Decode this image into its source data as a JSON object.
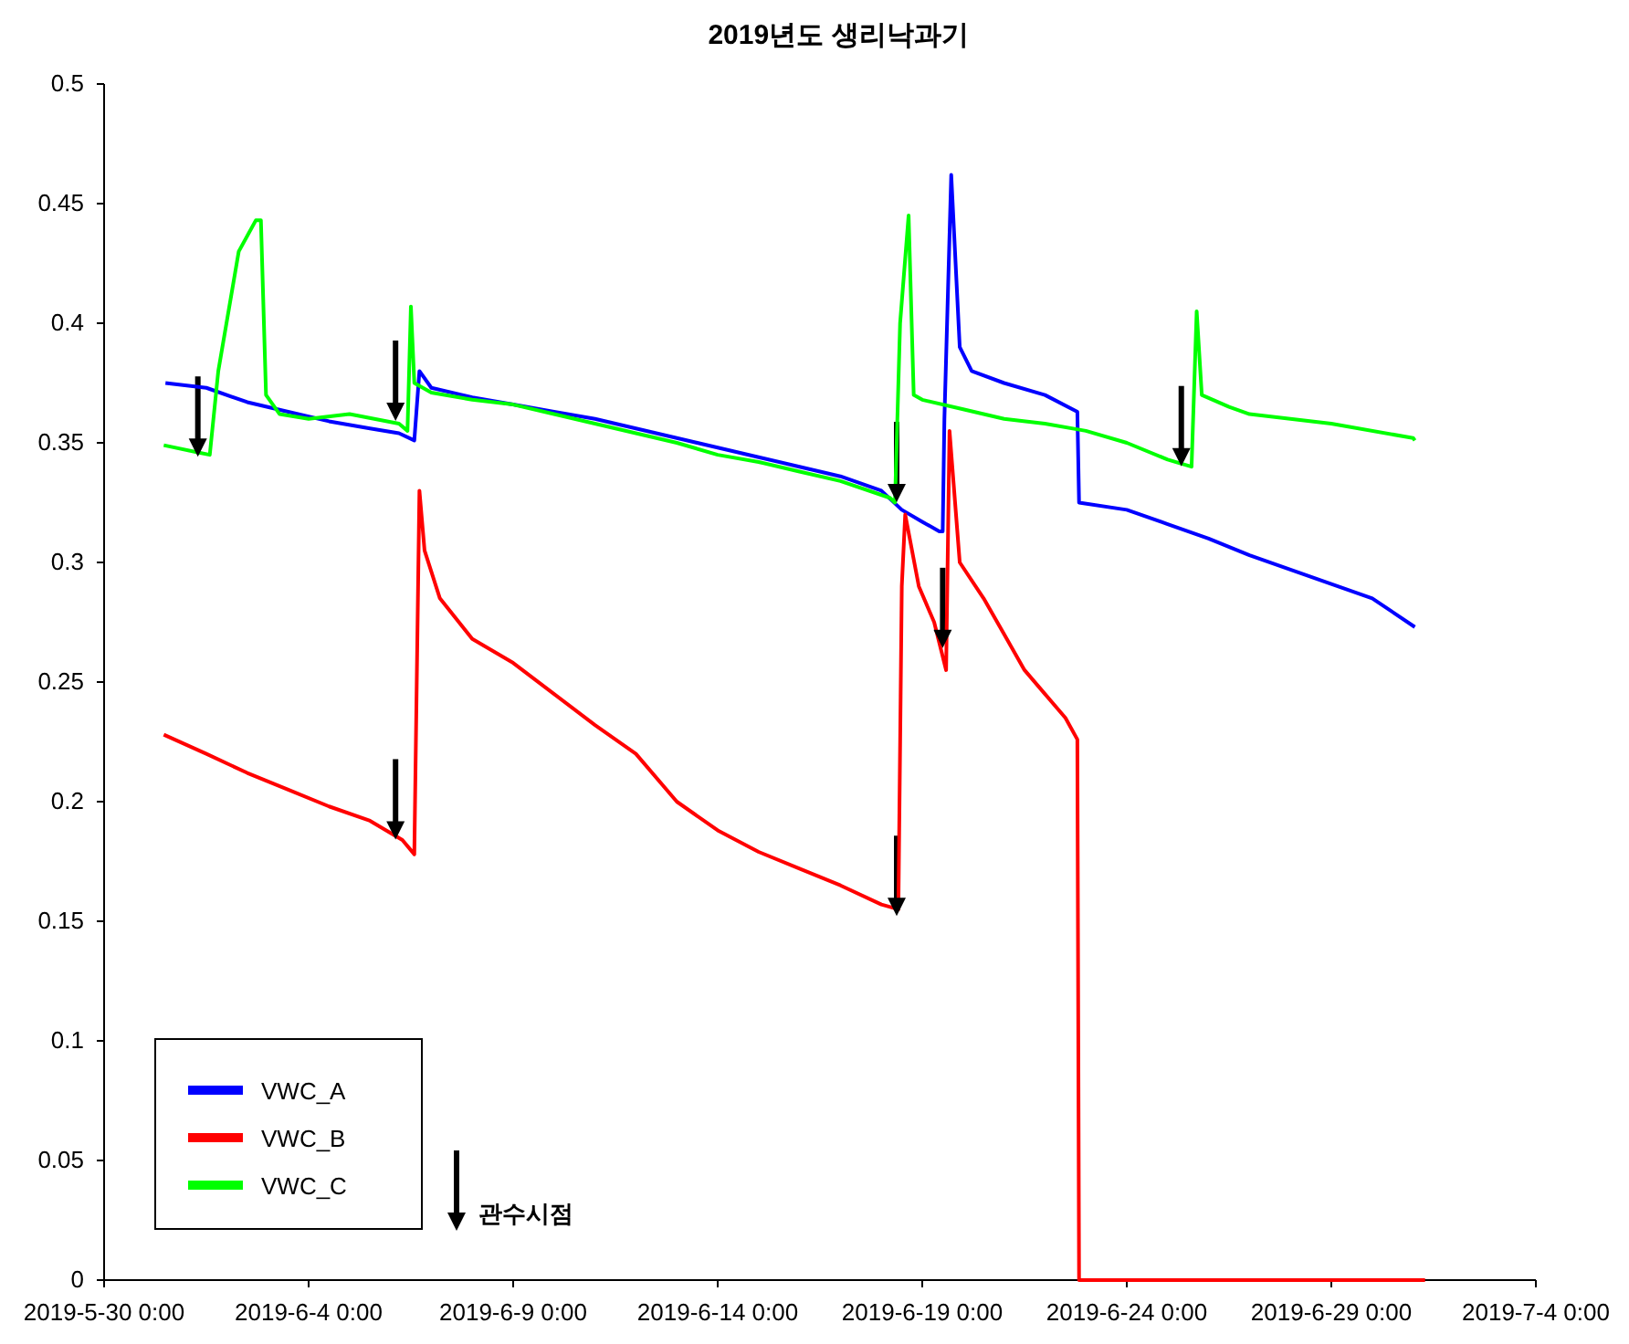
{
  "chart_data": {
    "type": "line",
    "title": "2019년도 생리낙과기",
    "xlim": [
      "2019-05-30",
      "2019-07-04"
    ],
    "xticks": [
      {
        "value": "2019-05-30",
        "label": "2019-5-30 0:00"
      },
      {
        "value": "2019-06-04",
        "label": "2019-6-4 0:00"
      },
      {
        "value": "2019-06-09",
        "label": "2019-6-9 0:00"
      },
      {
        "value": "2019-06-14",
        "label": "2019-6-14 0:00"
      },
      {
        "value": "2019-06-19",
        "label": "2019-6-19 0:00"
      },
      {
        "value": "2019-06-24",
        "label": "2019-6-24 0:00"
      },
      {
        "value": "2019-06-29",
        "label": "2019-6-29 0:00"
      },
      {
        "value": "2019-07-04",
        "label": "2019-7-4 0:00"
      }
    ],
    "ylim": [
      0,
      0.5
    ],
    "yticks": [
      0,
      0.05,
      0.1,
      0.15,
      0.2,
      0.25,
      0.3,
      0.35,
      0.4,
      0.45,
      0.5
    ],
    "grid": false,
    "legend": "bottom left",
    "series": [
      {
        "name": "VWC_A",
        "color": "#0000ff",
        "x": [
          "2019-05-31T12:00",
          "2019-06-01T12:00",
          "2019-06-02T12:00",
          "2019-06-03T12:00",
          "2019-06-04T12:00",
          "2019-06-05T12:00",
          "2019-06-06T05:00",
          "2019-06-06T14:00",
          "2019-06-06T17:00",
          "2019-06-07",
          "2019-06-08",
          "2019-06-09",
          "2019-06-10",
          "2019-06-11",
          "2019-06-12",
          "2019-06-13",
          "2019-06-14",
          "2019-06-15",
          "2019-06-16",
          "2019-06-17",
          "2019-06-18",
          "2019-06-18T12:00",
          "2019-06-19T00:00",
          "2019-06-19T10:00",
          "2019-06-19T12:00",
          "2019-06-19T13:00",
          "2019-06-19T17:00",
          "2019-06-19T22:00",
          "2019-06-20T05:00",
          "2019-06-21",
          "2019-06-22",
          "2019-06-22T19:00",
          "2019-06-22T20:00",
          "2019-06-24",
          "2019-06-25",
          "2019-06-26",
          "2019-06-27",
          "2019-06-28",
          "2019-06-29",
          "2019-06-30",
          "2019-07-01T01:00"
        ],
        "values": [
          0.375,
          0.373,
          0.367,
          0.363,
          0.359,
          0.356,
          0.354,
          0.351,
          0.38,
          0.373,
          0.369,
          0.366,
          0.363,
          0.36,
          0.356,
          0.352,
          0.348,
          0.344,
          0.34,
          0.336,
          0.33,
          0.322,
          0.317,
          0.313,
          0.313,
          0.36,
          0.462,
          0.39,
          0.38,
          0.375,
          0.37,
          0.363,
          0.325,
          0.322,
          0.316,
          0.31,
          0.303,
          0.297,
          0.291,
          0.285,
          0.273
        ]
      },
      {
        "name": "VWC_B",
        "color": "#ff0000",
        "x": [
          "2019-05-31T11:00",
          "2019-06-01T12:00",
          "2019-06-02T12:00",
          "2019-06-03T12:00",
          "2019-06-04T12:00",
          "2019-06-05T12:00",
          "2019-06-06T07:00",
          "2019-06-06T14:00",
          "2019-06-06T17:00",
          "2019-06-06T20:00",
          "2019-06-07T05:00",
          "2019-06-08",
          "2019-06-09",
          "2019-06-10",
          "2019-06-11",
          "2019-06-12",
          "2019-06-13",
          "2019-06-14",
          "2019-06-15",
          "2019-06-16",
          "2019-06-17",
          "2019-06-18T00:00",
          "2019-06-18T10:00",
          "2019-06-18T12:00",
          "2019-06-18T14:00",
          "2019-06-18T22:00",
          "2019-06-19T07:00",
          "2019-06-19T14:00",
          "2019-06-19T16:00",
          "2019-06-19T22:00",
          "2019-06-20T12:00",
          "2019-06-21T00:00",
          "2019-06-21T12:00",
          "2019-06-22T00:00",
          "2019-06-22T12:00",
          "2019-06-22T19:00",
          "2019-06-22T20:00",
          "2019-07-01T07:00"
        ],
        "values": [
          0.228,
          0.22,
          0.212,
          0.205,
          0.198,
          0.192,
          0.184,
          0.178,
          0.33,
          0.305,
          0.285,
          0.268,
          0.258,
          0.245,
          0.232,
          0.22,
          0.2,
          0.188,
          0.179,
          0.172,
          0.165,
          0.157,
          0.155,
          0.29,
          0.32,
          0.29,
          0.275,
          0.255,
          0.355,
          0.3,
          0.285,
          0.27,
          0.255,
          0.245,
          0.235,
          0.226,
          0,
          0
        ]
      },
      {
        "name": "VWC_C",
        "color": "#00ff00",
        "x": [
          "2019-05-31T11:00",
          "2019-06-01T07:00",
          "2019-06-01T14:00",
          "2019-06-01T19:00",
          "2019-06-02T07:00",
          "2019-06-02T17:00",
          "2019-06-02T20:00",
          "2019-06-02T23:00",
          "2019-06-03T07:00",
          "2019-06-04",
          "2019-06-05",
          "2019-06-06T05:00",
          "2019-06-06T10:00",
          "2019-06-06T12:00",
          "2019-06-06T14:00",
          "2019-06-07",
          "2019-06-08",
          "2019-06-09",
          "2019-06-10",
          "2019-06-11",
          "2019-06-12",
          "2019-06-13",
          "2019-06-14",
          "2019-06-15",
          "2019-06-16",
          "2019-06-17",
          "2019-06-18T05:00",
          "2019-06-18T08:00",
          "2019-06-18T11:00",
          "2019-06-18T16:00",
          "2019-06-18T19:00",
          "2019-06-19",
          "2019-06-20",
          "2019-06-21",
          "2019-06-22",
          "2019-06-23",
          "2019-06-24",
          "2019-06-25",
          "2019-06-25T14:00",
          "2019-06-25T17:00",
          "2019-06-25T20:00",
          "2019-06-26T12:00",
          "2019-06-27",
          "2019-06-29",
          "2019-07-01T00:00",
          "2019-07-01T01:00"
        ],
        "values": [
          0.349,
          0.346,
          0.345,
          0.38,
          0.43,
          0.443,
          0.443,
          0.37,
          0.362,
          0.36,
          0.362,
          0.358,
          0.355,
          0.407,
          0.375,
          0.371,
          0.368,
          0.366,
          0.362,
          0.358,
          0.354,
          0.35,
          0.345,
          0.342,
          0.338,
          0.334,
          0.327,
          0.325,
          0.4,
          0.445,
          0.37,
          0.368,
          0.364,
          0.36,
          0.358,
          0.355,
          0.35,
          0.343,
          0.34,
          0.405,
          0.37,
          0.365,
          0.362,
          0.358,
          0.352,
          0.351
        ]
      },
      {
        "name": "관수시점",
        "type": "scatter",
        "marker": "triangle",
        "color": "#000000",
        "x": [
          "2019-06-01T07:00",
          "2019-06-06T03:00",
          "2019-06-06T03:00",
          "2019-06-18T09:00",
          "2019-06-18T09:00",
          "2019-06-19T12:00",
          "2019-06-25T08:00"
        ],
        "values": [
          0.348,
          0.363,
          0.188,
          0.329,
          0.156,
          0.268,
          0.344
        ]
      }
    ]
  }
}
